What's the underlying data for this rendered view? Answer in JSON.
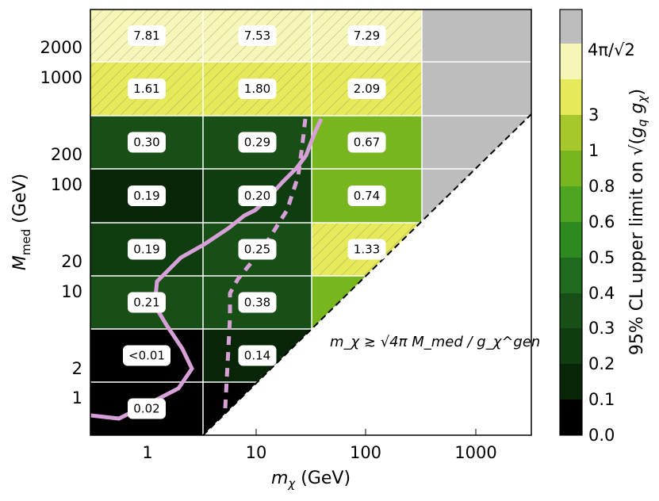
{
  "chart_data": {
    "type": "heatmap",
    "xlabel": "m_χ (GeV)",
    "ylabel": "M_med (GeV)",
    "colorbar_label": "95% CL upper limit on √(g_q g_χ)",
    "x_scale": "log",
    "x_ticks": [
      "1",
      "10",
      "100",
      "1000"
    ],
    "y_ticks": [
      "1",
      "2",
      "10",
      "20",
      "100",
      "200",
      "1000",
      "2000"
    ],
    "colorbar": {
      "tick_labels": [
        "0.0",
        "0.1",
        "0.2",
        "0.3",
        "0.4",
        "0.5",
        "0.6",
        "0.8",
        "1",
        "3",
        "4π/√2"
      ],
      "colors": [
        "#000000",
        "#072507",
        "#0f3d0f",
        "#174f17",
        "#1f6a1f",
        "#2e8a20",
        "#4da521",
        "#77b61f",
        "#a6c82a",
        "#e6ea5a",
        "#f5f6b8",
        "#bdbdbd"
      ]
    },
    "annotation": "m_χ ≳ √4π M_med / g_χ^gen",
    "cells": [
      {
        "mchi": "1",
        "mmed": "2000",
        "value": "7.81",
        "color": "#f5f6b8",
        "hatched": true
      },
      {
        "mchi": "10",
        "mmed": "2000",
        "value": "7.53",
        "color": "#f5f6b8",
        "hatched": true
      },
      {
        "mchi": "100",
        "mmed": "2000",
        "value": "7.29",
        "color": "#f5f6b8",
        "hatched": true
      },
      {
        "mchi": "1",
        "mmed": "1000",
        "value": "1.61",
        "color": "#e6ea5a",
        "hatched": true
      },
      {
        "mchi": "10",
        "mmed": "1000",
        "value": "1.80",
        "color": "#e6ea5a",
        "hatched": true
      },
      {
        "mchi": "100",
        "mmed": "1000",
        "value": "2.09",
        "color": "#e6ea5a",
        "hatched": true
      },
      {
        "mchi": "1",
        "mmed": "200",
        "value": "0.30",
        "color": "#174f17",
        "hatched": false
      },
      {
        "mchi": "10",
        "mmed": "200",
        "value": "0.29",
        "color": "#174f17",
        "hatched": false
      },
      {
        "mchi": "100",
        "mmed": "200",
        "value": "0.67",
        "color": "#77b61f",
        "hatched": false
      },
      {
        "mchi": "1",
        "mmed": "100",
        "value": "0.19",
        "color": "#072507",
        "hatched": false
      },
      {
        "mchi": "10",
        "mmed": "100",
        "value": "0.20",
        "color": "#0f3d0f",
        "hatched": false
      },
      {
        "mchi": "100",
        "mmed": "100",
        "value": "0.74",
        "color": "#77b61f",
        "hatched": false
      },
      {
        "mchi": "1",
        "mmed": "20",
        "value": "0.19",
        "color": "#0f3d0f",
        "hatched": false
      },
      {
        "mchi": "10",
        "mmed": "20",
        "value": "0.25",
        "color": "#174f17",
        "hatched": false
      },
      {
        "mchi": "100",
        "mmed": "20",
        "value": "1.33",
        "color": "#e6ea5a",
        "hatched": true
      },
      {
        "mchi": "1",
        "mmed": "10",
        "value": "0.21",
        "color": "#174f17",
        "hatched": false
      },
      {
        "mchi": "10",
        "mmed": "10",
        "value": "0.38",
        "color": "#174f17",
        "hatched": false
      },
      {
        "mchi": "100",
        "mmed": "10",
        "value": "",
        "color": "#77b61f",
        "hatched": false
      },
      {
        "mchi": "1",
        "mmed": "2",
        "value": "<0.01",
        "color": "#000000",
        "hatched": false
      },
      {
        "mchi": "10",
        "mmed": "2",
        "value": "0.14",
        "color": "#072507",
        "hatched": false
      },
      {
        "mchi": "1",
        "mmed": "1",
        "value": "0.02",
        "color": "#000000",
        "hatched": false
      },
      {
        "mchi": "10",
        "mmed": "1",
        "value": "",
        "color": "#000000",
        "hatched": false
      }
    ],
    "excluded_region_color": "#bdbdbd",
    "observed_limit_curve_color": "#d8a0d8",
    "expected_limit_curve_style": "dashed"
  }
}
